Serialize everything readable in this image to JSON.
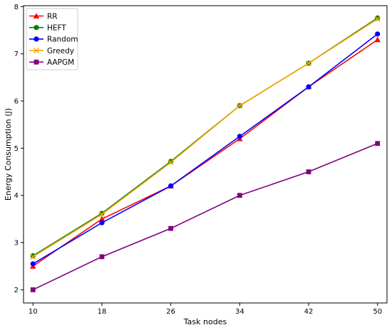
{
  "chart_data": {
    "type": "line",
    "title": "",
    "xlabel": "Task nodes",
    "ylabel": "Energy Consumption (J)",
    "x": [
      10,
      18,
      26,
      34,
      42,
      50
    ],
    "xticks": [
      "10",
      "18",
      "26",
      "34",
      "42",
      "50"
    ],
    "yticks": [
      "2",
      "3",
      "4",
      "5",
      "6",
      "7",
      "8"
    ],
    "ylim": [
      1.72,
      8.02
    ],
    "grid": false,
    "legend_position": "top-left",
    "series": [
      {
        "name": "RR",
        "color": "#ff0000",
        "marker": "triangle",
        "values": [
          2.5,
          3.5,
          4.2,
          5.2,
          6.3,
          7.3
        ]
      },
      {
        "name": "HEFT",
        "color": "#008000",
        "marker": "circle",
        "values": [
          2.72,
          3.62,
          4.72,
          5.9,
          6.8,
          7.76
        ]
      },
      {
        "name": "Random",
        "color": "#0000ff",
        "marker": "circle",
        "values": [
          2.55,
          3.42,
          4.2,
          5.25,
          6.3,
          7.42
        ]
      },
      {
        "name": "Greedy",
        "color": "#ffa500",
        "marker": "x",
        "values": [
          2.7,
          3.6,
          4.7,
          5.9,
          6.8,
          7.74
        ]
      },
      {
        "name": "AAPGM",
        "color": "#800080",
        "marker": "square",
        "values": [
          2.0,
          2.7,
          3.3,
          4.0,
          4.5,
          5.1
        ]
      }
    ]
  }
}
